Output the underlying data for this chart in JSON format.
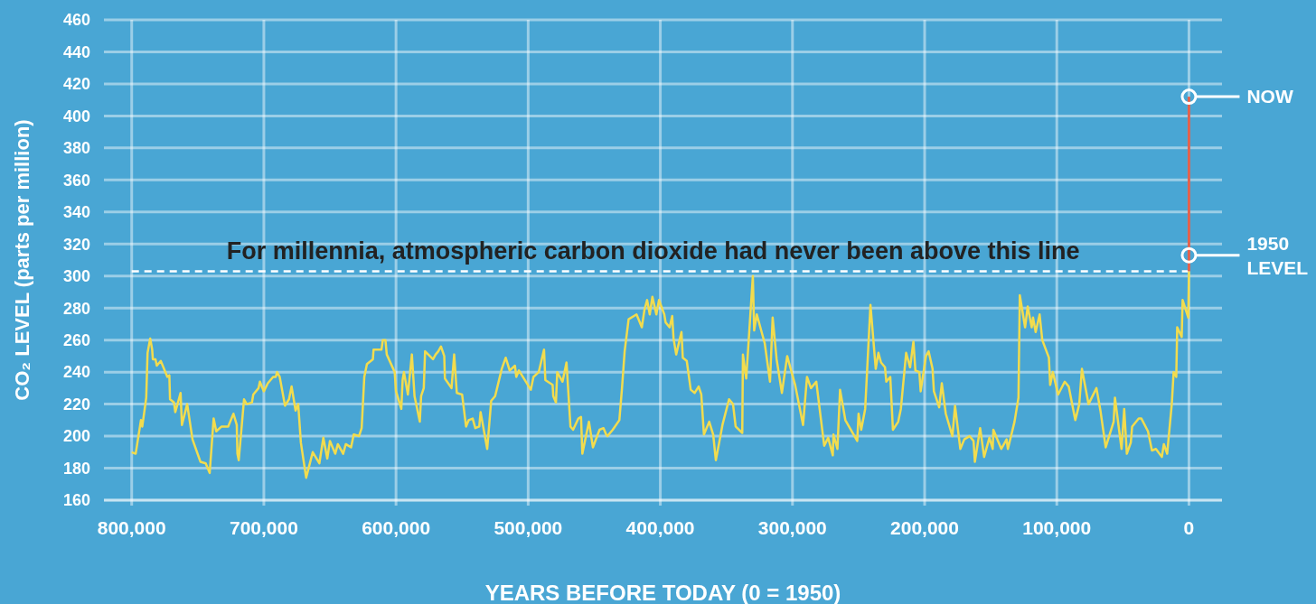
{
  "chart_data": {
    "type": "line",
    "xlabel": "YEARS BEFORE TODAY (0 = 1950)",
    "ylabel": "CO₂ LEVEL (parts per million)",
    "xlim": [
      821000,
      -25000
    ],
    "ylim": [
      160,
      460
    ],
    "xticks": [
      {
        "value": 800000,
        "label": "800,000"
      },
      {
        "value": 700000,
        "label": "700,000"
      },
      {
        "value": 600000,
        "label": "600,000"
      },
      {
        "value": 500000,
        "label": "500,000"
      },
      {
        "value": 400000,
        "label": "400,000"
      },
      {
        "value": 300000,
        "label": "300,000"
      },
      {
        "value": 200000,
        "label": "200,000"
      },
      {
        "value": 100000,
        "label": "100,000"
      },
      0
    ],
    "yticks": [
      160,
      180,
      200,
      220,
      240,
      260,
      280,
      300,
      320,
      340,
      360,
      380,
      400,
      420,
      440,
      460
    ],
    "grid": true,
    "series": [
      {
        "color": "#f2dc4e",
        "x": [
          800000,
          797000,
          793000,
          792000,
          789000,
          788000,
          786000,
          784500,
          784000,
          782000,
          781000,
          778000,
          773000,
          771500,
          771000,
          768000,
          767000,
          763000,
          762000,
          758000,
          754000,
          748000,
          744000,
          741000,
          738000,
          736000,
          732000,
          727000,
          723000,
          720500,
          720000,
          719000,
          715000,
          713000,
          709000,
          708000,
          704000,
          703000,
          700000,
          697000,
          693000,
          691000,
          690000,
          688000,
          684000,
          681000,
          679000,
          676000,
          674000,
          672000,
          668000,
          663000,
          658000,
          655000,
          652000,
          650000,
          646000,
          644000,
          640000,
          638000,
          634000,
          632000,
          628000,
          626000,
          624000,
          622000,
          617500,
          617000,
          611000,
          610000,
          608000,
          607000,
          601000,
          600000,
          596000,
          595000,
          594000,
          591000,
          588000,
          586000,
          582000,
          581000,
          579000,
          578000,
          572000,
          570000,
          568000,
          566000,
          563500,
          563000,
          558000,
          556000,
          554000,
          550000,
          547000,
          545000,
          542000,
          540000,
          537000,
          536000,
          531000,
          528000,
          525000,
          520000,
          517000,
          514000,
          510000,
          509000,
          507000,
          498000,
          496000,
          492000,
          488000,
          487000,
          481500,
          481000,
          479000,
          478000,
          474000,
          471000,
          468000,
          466000,
          462000,
          460000,
          459000,
          454000,
          451000,
          446000,
          443000,
          441000,
          440000,
          436000,
          431000,
          429000,
          427000,
          424000,
          418000,
          414000,
          412000,
          410000,
          408000,
          406000,
          403000,
          401000,
          397000,
          396000,
          393000,
          391000,
          390000,
          388000,
          384000,
          383000,
          380000,
          377000,
          374000,
          371000,
          369000,
          367000,
          363000,
          360000,
          358000,
          355000,
          353000,
          348000,
          345000,
          343000,
          338000,
          337500,
          335000,
          330000,
          329000,
          327000,
          321000,
          317000,
          315000,
          312000,
          308000,
          304000,
          298000,
          292000,
          289000,
          286000,
          282000,
          276000,
          273000,
          269500,
          269000,
          266000,
          264000,
          260000,
          251000,
          250000,
          248000,
          245000,
          241000,
          237000,
          235000,
          233000,
          230000,
          229000,
          226000,
          224000,
          220000,
          218000,
          214000,
          211000,
          208500,
          207000,
          204000,
          203000,
          199000,
          197000,
          194000,
          193000,
          189000,
          187000,
          184000,
          179000,
          177000,
          173000,
          170000,
          166000,
          163000,
          162000,
          158000,
          155000,
          151000,
          148500,
          148000,
          142000,
          138000,
          137000,
          132000,
          129000,
          128000,
          124000,
          122000,
          119000,
          118000,
          116000,
          113000,
          111000,
          106000,
          105000,
          103000,
          99000,
          94000,
          91000,
          86000,
          83000,
          81000,
          76000,
          70000,
          67000,
          63000,
          57000,
          56000,
          51000,
          49000,
          47000,
          44000,
          43000,
          38000,
          36000,
          31000,
          28000,
          25000,
          20500,
          19000,
          16500,
          13000,
          11600,
          9600,
          8900,
          5500,
          4800,
          500,
          0
        ],
        "values": [
          190,
          189,
          210,
          206,
          224,
          252,
          261,
          254,
          248,
          248,
          244,
          247,
          237,
          238,
          223,
          221,
          215,
          227,
          207,
          220,
          198,
          184,
          183,
          177,
          211,
          203,
          206,
          206,
          214,
          207,
          189,
          185,
          223,
          220,
          221,
          226,
          230,
          234,
          228,
          233,
          237,
          237,
          240,
          237,
          219,
          223,
          231,
          216,
          220,
          196,
          174,
          190,
          183,
          199,
          186,
          197,
          189,
          195,
          189,
          195,
          193,
          201,
          200,
          205,
          237,
          245,
          248,
          254,
          254,
          260,
          260,
          251,
          240,
          228,
          217,
          235,
          240,
          226,
          251,
          225,
          209,
          225,
          230,
          253,
          248,
          251,
          253,
          256,
          250,
          236,
          230,
          251,
          227,
          226,
          206,
          210,
          211,
          205,
          206,
          215,
          192,
          222,
          225,
          242,
          249,
          241,
          244,
          237,
          241,
          229,
          237,
          240,
          254,
          235,
          232,
          225,
          221,
          240,
          234,
          246,
          206,
          204,
          211,
          212,
          189,
          209,
          193,
          204,
          205,
          201,
          200,
          204,
          210,
          230,
          253,
          273,
          276,
          268,
          279,
          285,
          276,
          287,
          276,
          285,
          276,
          271,
          268,
          275,
          261,
          251,
          265,
          249,
          247,
          229,
          227,
          231,
          226,
          201,
          209,
          201,
          185,
          198,
          207,
          223,
          220,
          206,
          202,
          251,
          236,
          300,
          266,
          276,
          258,
          234,
          274,
          248,
          227,
          250,
          232,
          207,
          237,
          230,
          234,
          194,
          199,
          188,
          201,
          192,
          229,
          210,
          197,
          214,
          204,
          217,
          282,
          242,
          252,
          246,
          243,
          234,
          237,
          204,
          209,
          217,
          252,
          243,
          259,
          241,
          240,
          228,
          250,
          253,
          242,
          228,
          218,
          233,
          214,
          200,
          219,
          192,
          198,
          200,
          197,
          184,
          205,
          187,
          199,
          192,
          204,
          192,
          198,
          192,
          209,
          224,
          288,
          268,
          281,
          268,
          274,
          265,
          276,
          260,
          249,
          232,
          240,
          226,
          234,
          231,
          210,
          220,
          242,
          220,
          230,
          216,
          193,
          209,
          224,
          192,
          217,
          189,
          196,
          206,
          211,
          211,
          203,
          191,
          192,
          187,
          195,
          189,
          220,
          240,
          237,
          268,
          262,
          285,
          274,
          303
        ]
      },
      {
        "color": "#e0624e",
        "x": [
          0,
          0
        ],
        "values": [
          303,
          412
        ]
      }
    ],
    "ref_lines": [
      {
        "axis": "y",
        "value": 303,
        "label": "For millennia, atmospheric carbon dioxide had never been above this line",
        "color": "#ffffff",
        "line_style": "dashed"
      }
    ],
    "annotations": [
      {
        "text": "NOW",
        "x": 0,
        "y": 412
      },
      {
        "text": "1950 LEVEL",
        "x": 0,
        "y": 313
      }
    ]
  }
}
